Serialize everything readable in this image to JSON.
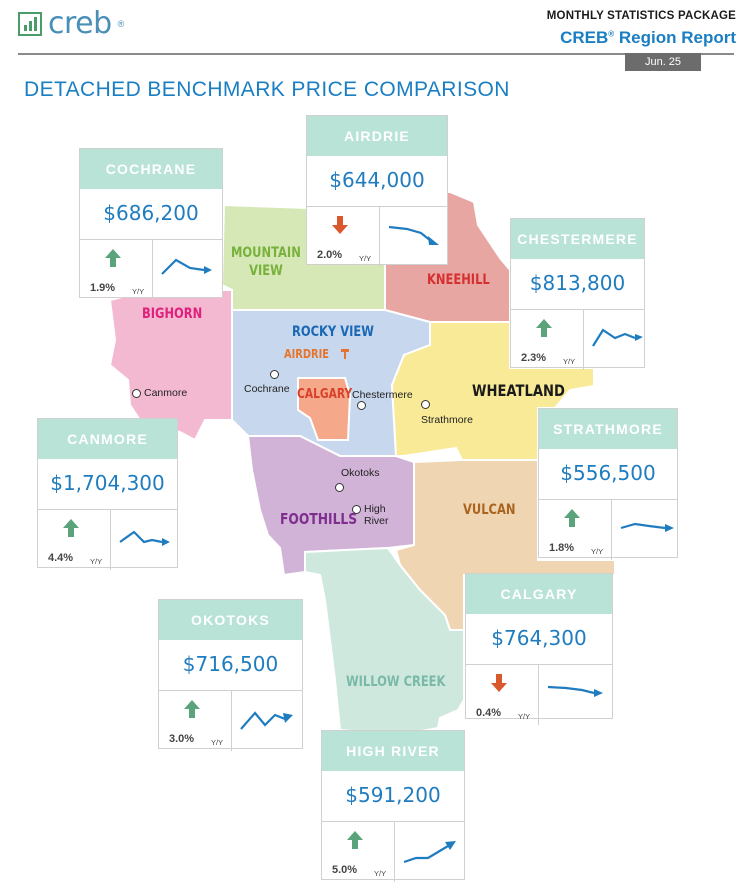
{
  "header": {
    "logo_text": "creb",
    "logo_reg": "®",
    "package_title": "MONTHLY STATISTICS PACKAGE",
    "report_title_main": "CREB",
    "report_title_reg": "®",
    "report_title_rest": " Region Report",
    "date": "Jun. 25"
  },
  "page_title": "DETACHED BENCHMARK PRICE COMPARISON",
  "map": {
    "regions": {
      "mountain_view_line1": "MOUNTAIN",
      "mountain_view_line2": "VIEW",
      "kneehill": "KNEEHILL",
      "bighorn": "BIGHORN",
      "rocky_view": "ROCKY VIEW",
      "airdrie": "AIRDRIE",
      "calgary": "CALGARY",
      "wheatland": "WHEATLAND",
      "foothills": "FOOTHILLS",
      "vulcan": "VULCAN",
      "willow_creek": "WILLOW CREEK"
    },
    "towns": {
      "canmore": "Canmore",
      "cochrane": "Cochrane",
      "chestermere": "Chestermere",
      "strathmore": "Strathmore",
      "okotoks": "Okotoks",
      "high_river_line1": "High",
      "high_river_line2": "River"
    }
  },
  "cards": {
    "cochrane": {
      "name": "COCHRANE",
      "price": "$686,200",
      "change": "1.9%",
      "yy": "Y/Y",
      "direction": "up"
    },
    "airdrie": {
      "name": "AIRDRIE",
      "price": "$644,000",
      "change": "2.0%",
      "yy": "Y/Y",
      "direction": "down"
    },
    "chestermere": {
      "name": "CHESTERMERE",
      "price": "$813,800",
      "change": "2.3%",
      "yy": "Y/Y",
      "direction": "up"
    },
    "canmore": {
      "name": "CANMORE",
      "price": "$1,704,300",
      "change": "4.4%",
      "yy": "Y/Y",
      "direction": "up"
    },
    "strathmore": {
      "name": "STRATHMORE",
      "price": "$556,500",
      "change": "1.8%",
      "yy": "Y/Y",
      "direction": "up"
    },
    "okotoks": {
      "name": "OKOTOKS",
      "price": "$716,500",
      "change": "3.0%",
      "yy": "Y/Y",
      "direction": "up"
    },
    "calgary": {
      "name": "CALGARY",
      "price": "$764,300",
      "change": "0.4%",
      "yy": "Y/Y",
      "direction": "down"
    },
    "high_river": {
      "name": "HIGH RIVER",
      "price": "$591,200",
      "change": "5.0%",
      "yy": "Y/Y",
      "direction": "up"
    }
  },
  "colors": {
    "accent": "#1a7ec2",
    "card_header": "#b9e3d7",
    "up_arrow": "#5aa37b",
    "down_arrow": "#d9582c",
    "mountain_view": "#d6e8b6",
    "kneehill": "#e7a6a2",
    "bighorn": "#f3b9d0",
    "rocky_view": "#c7d8ee",
    "calgary": "#f6a98a",
    "wheatland": "#f9ea97",
    "foothills": "#d1b3d8",
    "vulcan": "#efd5b2",
    "willow_creek": "#cfe8de"
  }
}
